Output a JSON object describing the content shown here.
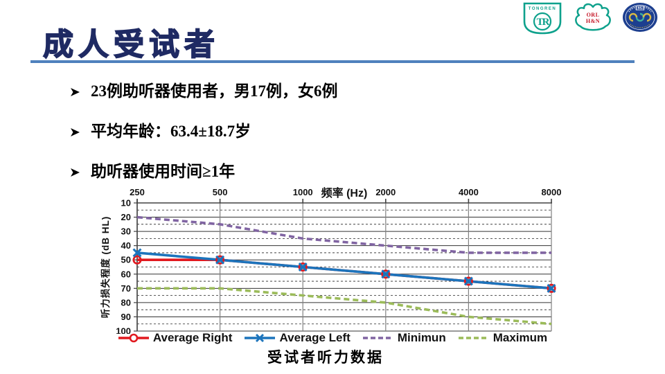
{
  "slide": {
    "title": "成人受试者",
    "bullets": [
      "23例助听器使用者，男17例，女6例",
      "平均年龄：63.4±18.7岁",
      "助听器使用时间≥1年"
    ],
    "caption": "受试者听力数据"
  },
  "logos": {
    "tongren_badge": {
      "top_text": "TONGREN",
      "monogram": "TR"
    },
    "orl_han": {
      "line1": "ORL",
      "line2": "H&N"
    },
    "hospital_seal": {
      "year": "1953"
    }
  },
  "colors": {
    "title_navy": "#1f2a63",
    "underline_blue": "#4f81bd",
    "series_red": "#e1191f",
    "series_blue": "#1c74bc",
    "series_purple": "#8064a2",
    "series_olive": "#9bbb59",
    "logo_teal": "#0ea18c",
    "logo_red": "#c41425",
    "seal_blue": "#1d3f8f"
  },
  "chart_data": {
    "type": "line",
    "x_axis_title": "频率 (Hz)",
    "y_axis_title": "听力损失程度 (dB HL)",
    "categories": [
      "250",
      "500",
      "1000",
      "2000",
      "4000",
      "8000"
    ],
    "y_ticks": [
      10,
      20,
      30,
      40,
      50,
      60,
      70,
      80,
      90,
      100
    ],
    "ylim": [
      10,
      100
    ],
    "y_axis_inverted": true,
    "grid": "major-solid minor-dashed vertical-on",
    "legend_position": "bottom",
    "series": [
      {
        "name": "Average Right",
        "color": "#e1191f",
        "marker": "open-circle",
        "line": "solid",
        "values": [
          50,
          50,
          55,
          60,
          65,
          70
        ]
      },
      {
        "name": "Average Left",
        "color": "#1c74bc",
        "marker": "x",
        "line": "solid",
        "values": [
          45,
          50,
          55,
          60,
          65,
          70
        ]
      },
      {
        "name": "Minimun",
        "color": "#8064a2",
        "marker": "none",
        "line": "dashed",
        "values": [
          20,
          25,
          35,
          40,
          45,
          45
        ]
      },
      {
        "name": "Maximum",
        "color": "#9bbb59",
        "marker": "none",
        "line": "dashed",
        "values": [
          70,
          70,
          75,
          80,
          90,
          95
        ]
      }
    ]
  }
}
